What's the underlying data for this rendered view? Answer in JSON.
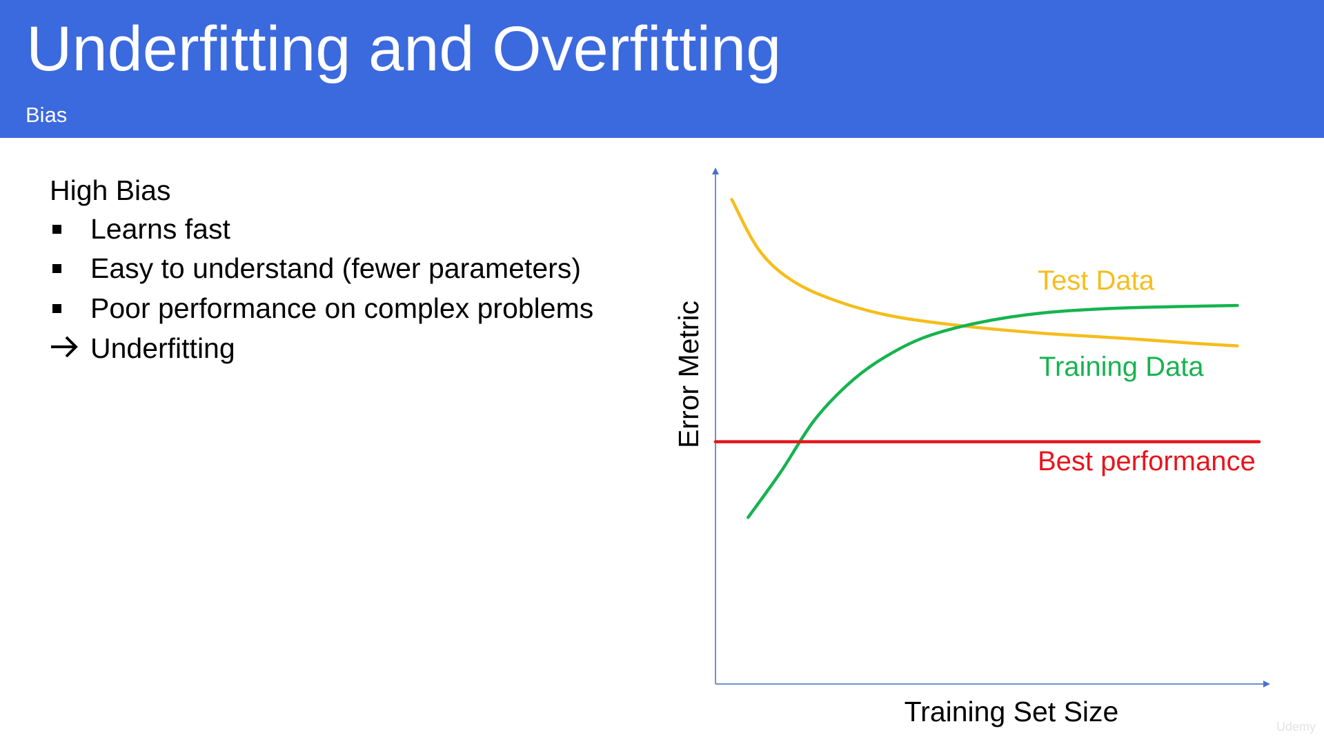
{
  "slide": {
    "title": "Underfitting and Overfitting",
    "subtitle": "Bias"
  },
  "content": {
    "heading": "High Bias",
    "bullets": [
      {
        "marker": "square-bullet",
        "text": "Learns fast"
      },
      {
        "marker": "square-bullet",
        "text": "Easy to understand (fewer parameters)"
      },
      {
        "marker": "square-bullet",
        "text": "Poor performance on complex problems"
      },
      {
        "marker": "right-arrow-icon",
        "text": "Underfitting"
      }
    ]
  },
  "chart_data": {
    "type": "line",
    "title": "",
    "xlabel": "Training Set Size",
    "ylabel": "Error Metric",
    "xlim": [
      0,
      100
    ],
    "ylim": [
      0,
      100
    ],
    "grid": false,
    "series": [
      {
        "name": "Test Data",
        "color": "#f5bd1c",
        "x": [
          3,
          8,
          14,
          22,
          32,
          45,
          60,
          75,
          88,
          96
        ],
        "y": [
          96,
          86,
          80,
          76,
          73,
          71,
          69.5,
          68.5,
          67.5,
          67
        ]
      },
      {
        "name": "Training Data",
        "color": "#16b34f",
        "x": [
          6,
          12,
          18,
          24,
          30,
          38,
          48,
          60,
          75,
          96
        ],
        "y": [
          33,
          42,
          52,
          59,
          64,
          68.5,
          71.5,
          73.5,
          74.5,
          75
        ]
      },
      {
        "name": "Best performance",
        "color": "#e8141c",
        "x": [
          0,
          100
        ],
        "y": [
          48,
          48
        ]
      }
    ]
  },
  "colors": {
    "header_bg": "#3b69de",
    "axis": "#6f8fd6"
  },
  "watermark": "Udemy"
}
